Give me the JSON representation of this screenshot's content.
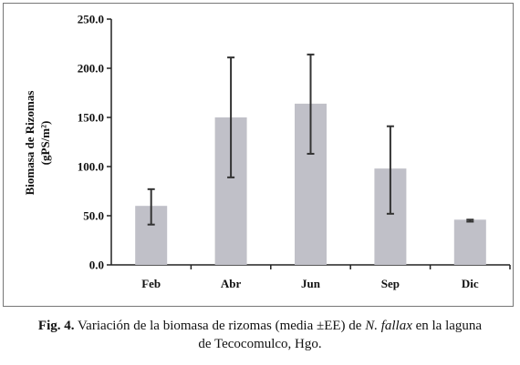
{
  "chart_data": {
    "type": "bar",
    "categories": [
      "Feb",
      "Abr",
      "Jun",
      "Sep",
      "Dic"
    ],
    "values": [
      60,
      150,
      164,
      98,
      46
    ],
    "error_upper": [
      77,
      211,
      214,
      141,
      46
    ],
    "error_lower": [
      41,
      89,
      113,
      52,
      44
    ],
    "ylabel_line1": "Biomasa de Rizomas",
    "ylabel_line2": "(gPS/m²)",
    "ylim": [
      0,
      250
    ],
    "yticks": [
      "0.0",
      "50.0",
      "100.0",
      "150.0",
      "200.0",
      "250.0"
    ],
    "grid": false,
    "bar_color": "#c0c0c8",
    "error_color": "#333333"
  },
  "caption": {
    "fig_label": "Fig. 4.",
    "text_part1": " Variación de la biomasa de rizomas (media ±EE) de ",
    "species": "N. fallax",
    "text_part2": " en la laguna",
    "line2": "de Tecocomulco, Hgo."
  }
}
